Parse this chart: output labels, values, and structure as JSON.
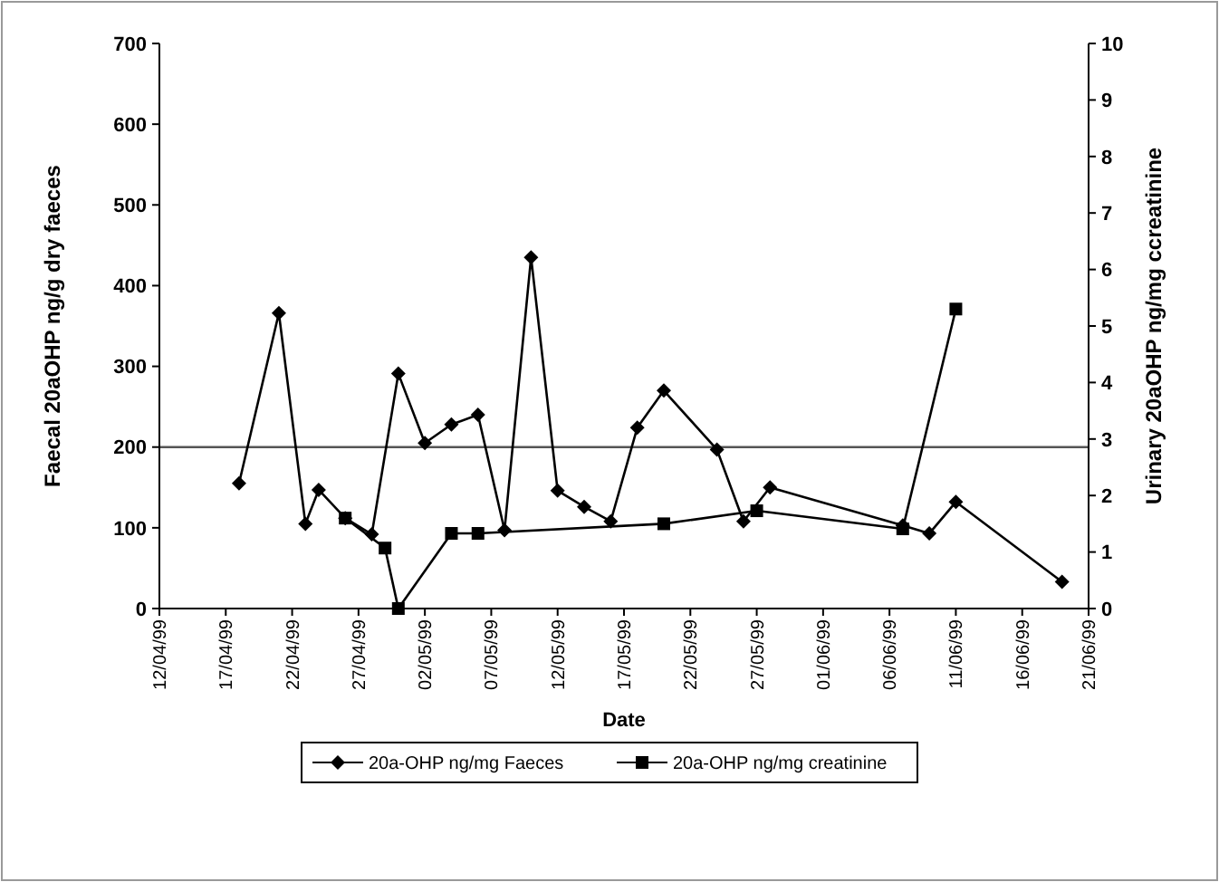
{
  "chart_data": {
    "type": "line",
    "xlabel": "Date",
    "ylabel": "Faecal 20aOHP ng/g dry  faeces",
    "y2label": "Urinary 20aOHP ng/mg  ccreatinine",
    "xlim": [
      "1999-04-12",
      "1999-06-21"
    ],
    "xticks": [
      {
        "value": "1999-04-12",
        "label": "12/04/99"
      },
      {
        "value": "1999-04-17",
        "label": "17/04/99"
      },
      {
        "value": "1999-04-22",
        "label": "22/04/99"
      },
      {
        "value": "1999-04-27",
        "label": "27/04/99"
      },
      {
        "value": "1999-05-02",
        "label": "02/05/99"
      },
      {
        "value": "1999-05-07",
        "label": "07/05/99"
      },
      {
        "value": "1999-05-12",
        "label": "12/05/99"
      },
      {
        "value": "1999-05-17",
        "label": "17/05/99"
      },
      {
        "value": "1999-05-22",
        "label": "22/05/99"
      },
      {
        "value": "1999-05-27",
        "label": "27/05/99"
      },
      {
        "value": "1999-06-01",
        "label": "01/06/99"
      },
      {
        "value": "1999-06-06",
        "label": "06/06/99"
      },
      {
        "value": "1999-06-11",
        "label": "11/06/99"
      },
      {
        "value": "1999-06-16",
        "label": "16/06/99"
      },
      {
        "value": "1999-06-21",
        "label": "21/06/99"
      }
    ],
    "ylim": [
      0,
      700
    ],
    "yticks": [
      0,
      100,
      200,
      300,
      400,
      500,
      600,
      700
    ],
    "y2lim": [
      0,
      10
    ],
    "y2ticks": [
      0,
      1,
      2,
      3,
      4,
      5,
      6,
      7,
      8,
      9,
      10
    ],
    "series": [
      {
        "name": "20a-OHP ng/mg Faeces",
        "color": "#000000",
        "marker": "diamond",
        "x": [
          "1999-04-18",
          "1999-04-21",
          "1999-04-23",
          "1999-04-24",
          "1999-04-26",
          "1999-04-28",
          "1999-04-30",
          "1999-05-02",
          "1999-05-04",
          "1999-05-06",
          "1999-05-08",
          "1999-05-10",
          "1999-05-12",
          "1999-05-14",
          "1999-05-16",
          "1999-05-18",
          "1999-05-20",
          "1999-05-24",
          "1999-05-26",
          "1999-05-28",
          "1999-06-07",
          "1999-06-09",
          "1999-06-11",
          "1999-06-19"
        ],
        "values": [
          155,
          366,
          105,
          147,
          112,
          92,
          291,
          205,
          228,
          240,
          97,
          435,
          146,
          126,
          108,
          224,
          270,
          197,
          108,
          150,
          103,
          93,
          132,
          33
        ]
      },
      {
        "name": "20a-OHP ng/mg creatinine",
        "color": "#000000",
        "marker": "square",
        "axis": "y2",
        "x": [
          "1999-04-26",
          "1999-04-29",
          "1999-04-30",
          "1999-05-04",
          "1999-05-06",
          "1999-05-20",
          "1999-05-27",
          "1999-06-07",
          "1999-06-11"
        ],
        "values": [
          1.6,
          1.07,
          0,
          1.33,
          1.33,
          1.5,
          1.73,
          1.41,
          5.3
        ]
      }
    ],
    "ref_lines": [
      {
        "axis": "y",
        "value": 200,
        "color": "#555555"
      }
    ],
    "legend": "bottom"
  }
}
